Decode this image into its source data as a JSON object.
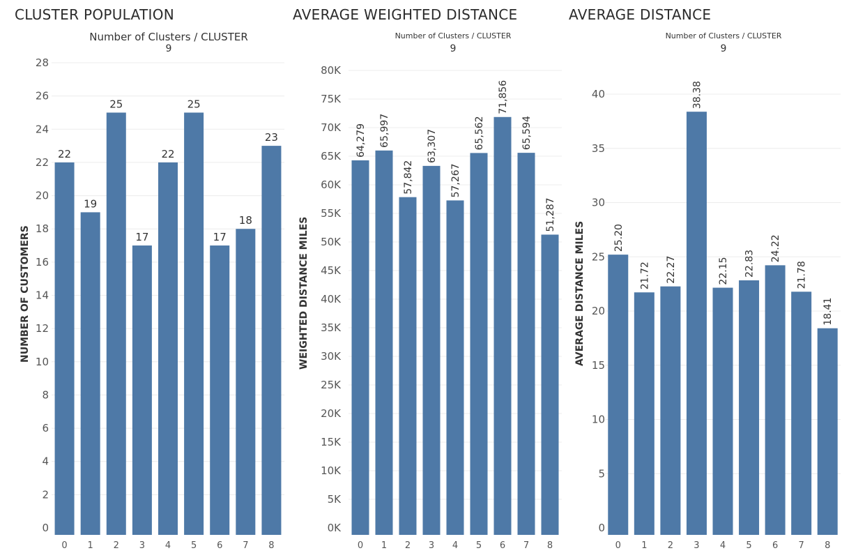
{
  "chart_data": [
    {
      "type": "bar",
      "title": "CLUSTER POPULATION",
      "column_header": "Number of Clusters / CLUSTER",
      "column_value": "9",
      "ylabel": "NUMBER OF CUSTOMERS",
      "xlabel": "",
      "categories": [
        "0",
        "1",
        "2",
        "3",
        "4",
        "5",
        "6",
        "7",
        "8"
      ],
      "values": [
        22,
        19,
        25,
        17,
        22,
        25,
        17,
        18,
        23
      ],
      "value_labels": [
        "22",
        "19",
        "25",
        "17",
        "22",
        "25",
        "17",
        "18",
        "23"
      ],
      "label_rotation": "horizontal",
      "ylim": [
        0,
        28
      ],
      "yticks": [
        0,
        2,
        4,
        6,
        8,
        10,
        12,
        14,
        16,
        18,
        20,
        22,
        24,
        26,
        28
      ],
      "ytick_labels": [
        "0",
        "2",
        "4",
        "6",
        "8",
        "10",
        "12",
        "14",
        "16",
        "18",
        "20",
        "22",
        "24",
        "26",
        "28"
      ],
      "grid": true,
      "bar_color": "#4e79a7"
    },
    {
      "type": "bar",
      "title": "AVERAGE WEIGHTED DISTANCE",
      "column_header": "Number of Clusters / CLUSTER",
      "column_value": "9",
      "ylabel": "WEIGHTED DISTANCE MILES",
      "xlabel": "",
      "categories": [
        "0",
        "1",
        "2",
        "3",
        "4",
        "5",
        "6",
        "7",
        "8"
      ],
      "values": [
        64279,
        65997,
        57842,
        63307,
        57267,
        65562,
        71856,
        65594,
        51287
      ],
      "value_labels": [
        "64,279",
        "65,997",
        "57,842",
        "63,307",
        "57,267",
        "65,562",
        "71,856",
        "65,594",
        "51,287"
      ],
      "label_rotation": "vertical",
      "ylim": [
        0,
        80000
      ],
      "yticks": [
        0,
        5000,
        10000,
        15000,
        20000,
        25000,
        30000,
        35000,
        40000,
        45000,
        50000,
        55000,
        60000,
        65000,
        70000,
        75000,
        80000
      ],
      "ytick_labels": [
        "0K",
        "5K",
        "10K",
        "15K",
        "20K",
        "25K",
        "30K",
        "35K",
        "40K",
        "45K",
        "50K",
        "55K",
        "60K",
        "65K",
        "70K",
        "75K",
        "80K"
      ],
      "grid": true,
      "bar_color": "#4e79a7"
    },
    {
      "type": "bar",
      "title": "AVERAGE DISTANCE",
      "column_header": "Number of Clusters / CLUSTER",
      "column_value": "9",
      "ylabel": "AVERAGE DISTANCE MILES",
      "xlabel": "",
      "categories": [
        "0",
        "1",
        "2",
        "3",
        "4",
        "5",
        "6",
        "7",
        "8"
      ],
      "values": [
        25.2,
        21.72,
        22.27,
        38.38,
        22.15,
        22.83,
        24.22,
        21.78,
        18.41
      ],
      "value_labels": [
        "25.20",
        "21.72",
        "22.27",
        "38.38",
        "22.15",
        "22.83",
        "24.22",
        "21.78",
        "18.41"
      ],
      "label_rotation": "vertical",
      "ylim": [
        0,
        40
      ],
      "yticks": [
        0,
        5,
        10,
        15,
        20,
        25,
        30,
        35,
        40
      ],
      "ytick_labels": [
        "0",
        "5",
        "10",
        "15",
        "20",
        "25",
        "30",
        "35",
        "40"
      ],
      "grid": true,
      "bar_color": "#4e79a7"
    }
  ]
}
